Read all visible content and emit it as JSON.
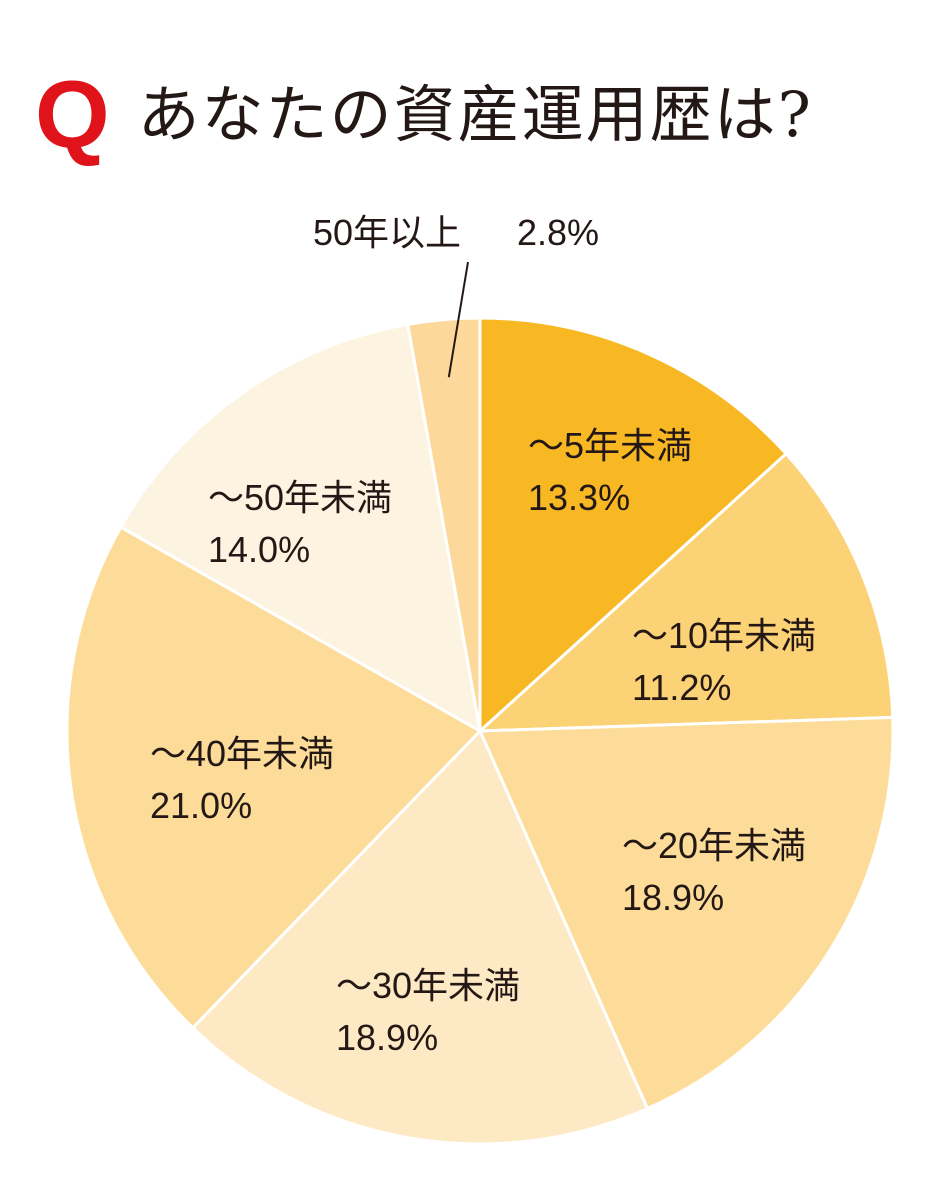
{
  "header": {
    "q_mark": "Q",
    "question": "あなたの資産運用歴は?"
  },
  "chart_data": {
    "type": "pie",
    "title": "あなたの資産運用歴は?",
    "start": "12 o'clock, clockwise",
    "slices": [
      {
        "label": "～5年未満",
        "value": 13.3,
        "text": "13.3%",
        "color": "#f7b823"
      },
      {
        "label": "～10年未満",
        "value": 11.2,
        "text": "11.2%",
        "color": "#fbd276"
      },
      {
        "label": "～20年未満",
        "value": 18.9,
        "text": "18.9%",
        "color": "#fcdc98"
      },
      {
        "label": "～30年未満",
        "value": 18.9,
        "text": "18.9%",
        "color": "#fde9c3"
      },
      {
        "label": "～40年未満",
        "value": 21.0,
        "text": "21.0%",
        "color": "#fcdc98"
      },
      {
        "label": "～50年未満",
        "value": 14.0,
        "text": "14.0%",
        "color": "#fdf3e1"
      },
      {
        "label": "50年以上",
        "value": 2.8,
        "text": "2.8%",
        "color": "#fcd99a"
      }
    ]
  }
}
